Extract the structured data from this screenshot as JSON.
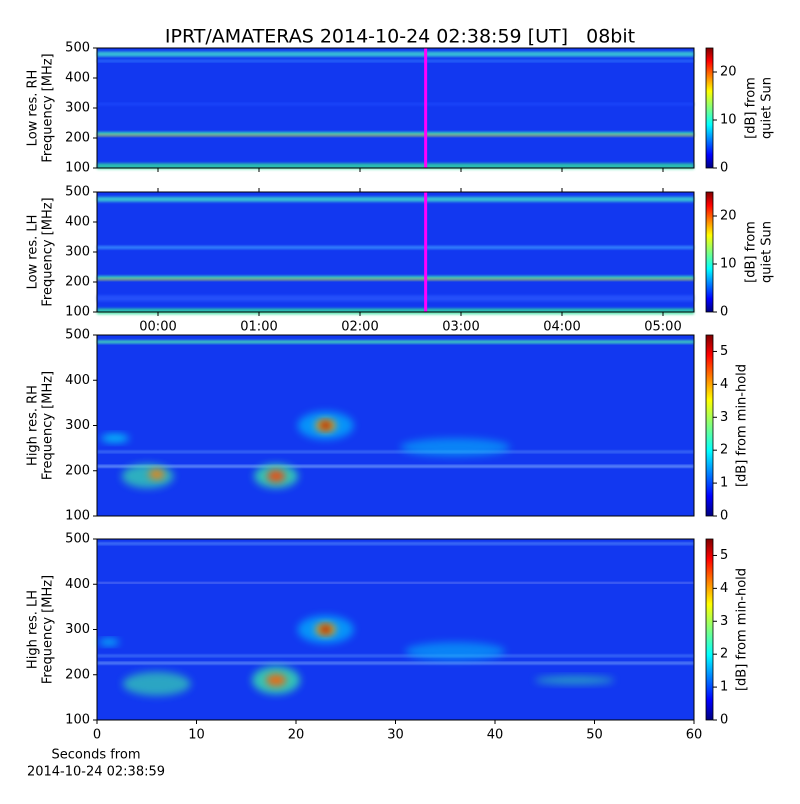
{
  "title": "IPRT/AMATERAS 2014-10-24 02:38:59 [UT]   08bit",
  "chart_data": [
    {
      "type": "spectrogram",
      "ylabel": [
        "Low res. RH",
        "Frequency [MHz]"
      ],
      "ylim": [
        100,
        500
      ],
      "yticks": [
        100,
        200,
        300,
        400,
        500
      ],
      "xlim": [
        -0.604,
        5.307
      ],
      "marker_x": 2.65,
      "marker_color": "#ff00ff",
      "colorbar": {
        "label": [
          "[dB] from",
          "quiet Sun"
        ],
        "clim": [
          0,
          25
        ],
        "ticks": [
          0,
          10,
          20
        ]
      }
    },
    {
      "type": "spectrogram",
      "ylabel": [
        "Low res. LH",
        "Frequency [MHz]"
      ],
      "ylim": [
        100,
        500
      ],
      "yticks": [
        100,
        200,
        300,
        400,
        500
      ],
      "xlim": [
        -0.604,
        5.307
      ],
      "marker_x": 2.65,
      "marker_color": "#ff00ff",
      "sharex": true,
      "xticks": [
        {
          "value": 0,
          "label": "00:00"
        },
        {
          "value": 1,
          "label": "01:00"
        },
        {
          "value": 2,
          "label": "02:00"
        },
        {
          "value": 3,
          "label": "03:00"
        },
        {
          "value": 4,
          "label": "04:00"
        },
        {
          "value": 5,
          "label": "05:00"
        }
      ],
      "colorbar": {
        "label": [
          "[dB] from",
          "quiet Sun"
        ],
        "clim": [
          0,
          25
        ],
        "ticks": [
          0,
          10,
          20
        ]
      }
    },
    {
      "type": "spectrogram",
      "ylabel": [
        "High res. RH",
        "Frequency [MHz]"
      ],
      "ylim": [
        100,
        500
      ],
      "yticks": [
        100,
        200,
        300,
        400,
        500
      ],
      "xlim": [
        0,
        60
      ],
      "colorbar": {
        "label": [
          "[dB] from min-hold"
        ],
        "clim": [
          0,
          5.5
        ],
        "ticks": [
          0,
          1,
          2,
          3,
          4,
          5
        ]
      }
    },
    {
      "type": "spectrogram",
      "ylabel": [
        "High res. LH",
        "Frequency [MHz]"
      ],
      "ylim": [
        100,
        500
      ],
      "yticks": [
        100,
        200,
        300,
        400,
        500
      ],
      "xlim": [
        0,
        60
      ],
      "xticks": [
        0,
        10,
        20,
        30,
        40,
        50,
        60
      ],
      "xlabel": [
        "Seconds from",
        "2014-10-24 02:38:59"
      ],
      "colorbar": {
        "label": [
          "[dB] from min-hold"
        ],
        "clim": [
          0,
          5.5
        ],
        "ticks": [
          0,
          1,
          2,
          3,
          4,
          5
        ]
      }
    }
  ]
}
